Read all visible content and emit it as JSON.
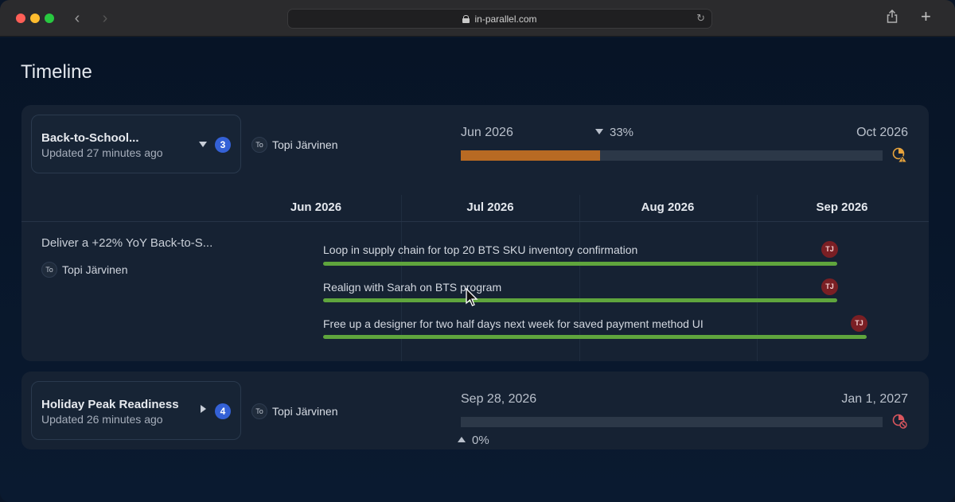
{
  "browser": {
    "url": "in-parallel.com"
  },
  "page": {
    "title": "Timeline"
  },
  "projects": [
    {
      "name": "Back-to-School...",
      "updated": "Updated 27 minutes ago",
      "count": "3",
      "owner_initials": "To",
      "owner": "Topi Järvinen",
      "start": "Jun 2026",
      "end": "Oct 2026",
      "percent": "33%",
      "progress": 0.33,
      "progress_color": "#b86a23",
      "status_icon": "clock-warning-icon",
      "months": [
        "Jun 2026",
        "Jul 2026",
        "Aug 2026",
        "Sep 2026"
      ],
      "goal": "Deliver a +22% YoY Back-to-S...",
      "goal_owner_initials": "To",
      "goal_owner": "Topi Järvinen",
      "tasks": [
        {
          "label": "Loop in supply chain for top 20 BTS SKU inventory confirmation",
          "assignee": "TJ"
        },
        {
          "label": "Realign with Sarah on BTS program",
          "assignee": "TJ"
        },
        {
          "label": "Free up a designer for two half days next week for saved payment method UI",
          "assignee": "TJ"
        }
      ],
      "task_color": "#5fa53d"
    },
    {
      "name": "Holiday Peak Readiness",
      "updated": "Updated 26 minutes ago",
      "count": "4",
      "owner_initials": "To",
      "owner": "Topi Järvinen",
      "start": "Sep 28, 2026",
      "end": "Jan 1, 2027",
      "percent": "0%",
      "progress": 0,
      "status_icon": "clock-blocked-icon"
    }
  ]
}
